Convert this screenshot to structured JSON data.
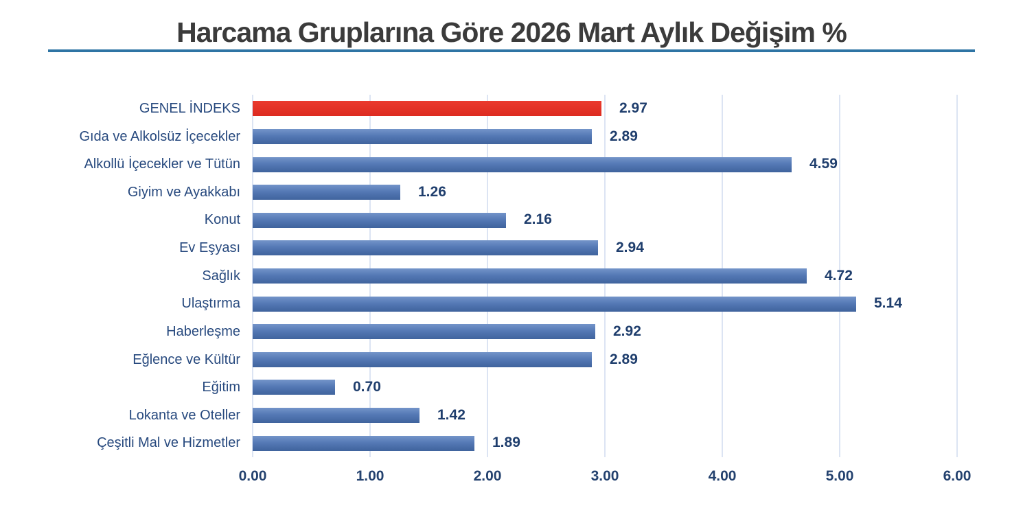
{
  "title": "Harcama Gruplarına Göre 2026 Mart Aylık Değişim %",
  "colors": {
    "title_text": "#3b3b3b",
    "title_underline": "#2e74a4",
    "gridline": "#dce4f3",
    "category_text": "#27497e",
    "value_text": "#1f3e6d",
    "tick_text": "#24426f",
    "bar_gradient_top": "#7394c9",
    "bar_gradient_mid": "#5579b5",
    "bar_gradient_bottom": "#3f639d",
    "highlight_gradient_top": "#ea3a2e",
    "highlight_gradient_bottom": "#dd2b20"
  },
  "chart_data": {
    "type": "bar",
    "orientation": "horizontal",
    "title": "Harcama Gruplarına Göre 2026 Mart Aylık Değişim %",
    "categories": [
      "GENEL İNDEKS",
      "Gıda ve Alkolsüz İçecekler",
      "Alkollü İçecekler ve Tütün",
      "Giyim ve Ayakkabı",
      "Konut",
      "Ev Eşyası",
      "Sağlık",
      "Ulaştırma",
      "Haberleşme",
      "Eğlence ve Kültür",
      "Eğitim",
      "Lokanta ve Oteller",
      "Çeşitli Mal ve Hizmetler"
    ],
    "values": [
      2.97,
      2.89,
      4.59,
      1.26,
      2.16,
      2.94,
      4.72,
      5.14,
      2.92,
      2.89,
      0.7,
      1.42,
      1.89
    ],
    "value_labels": [
      "2.97",
      "2.89",
      "4.59",
      "1.26",
      "2.16",
      "2.94",
      "4.72",
      "5.14",
      "2.92",
      "2.89",
      "0.70",
      "1.42",
      "1.89"
    ],
    "highlight_category": "GENEL İNDEKS",
    "highlight_index": 0,
    "xlim": [
      0,
      6
    ],
    "x_ticks": [
      "0.00",
      "1.00",
      "2.00",
      "3.00",
      "4.00",
      "5.00",
      "6.00"
    ],
    "grid": true,
    "legend": "none",
    "value_labels_position": "outside-end"
  }
}
